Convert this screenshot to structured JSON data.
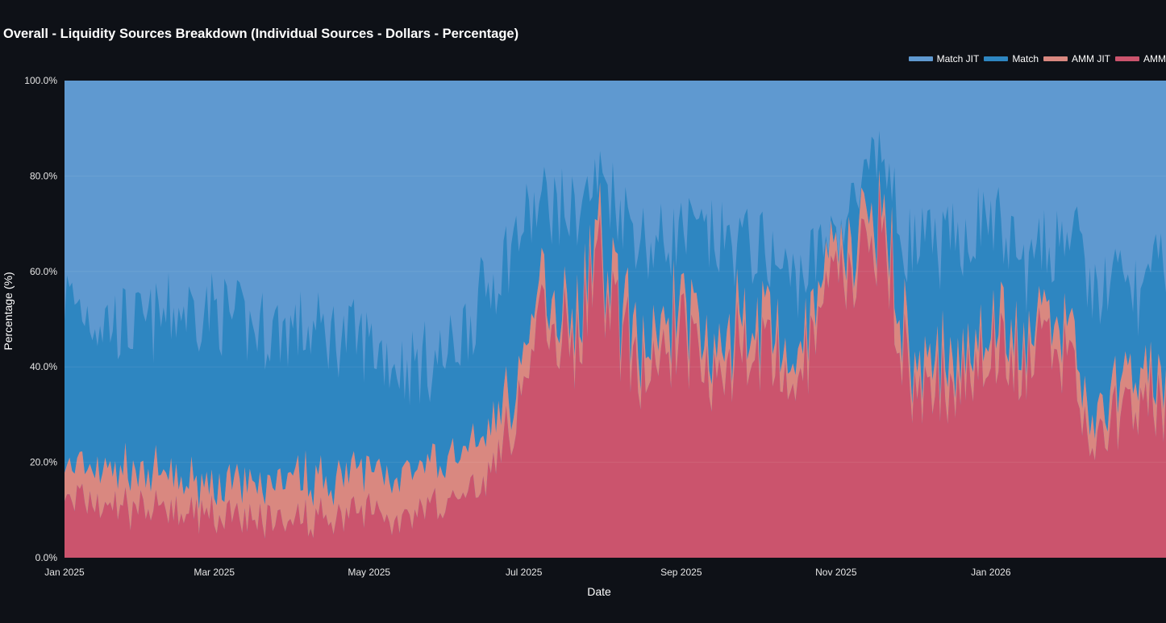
{
  "chart_data": {
    "type": "area",
    "stacking": "percent",
    "title": "Overall - Liquidity Sources Breakdown (Individual Sources - Dollars - Percentage)",
    "xlabel": "Date",
    "ylabel": "Percentage (%)",
    "ylim": [
      0,
      100
    ],
    "yticks": [
      0,
      20,
      40,
      60,
      80,
      100
    ],
    "ytick_labels": [
      "0.0%",
      "20.0%",
      "40.0%",
      "60.0%",
      "80.0%",
      "100.0%"
    ],
    "x_start": "2025-01-01",
    "x_end": "2026-03-11",
    "xticks": [
      "2025-01-01",
      "2025-03-01",
      "2025-05-01",
      "2025-07-01",
      "2025-09-01",
      "2025-11-01",
      "2026-01-01"
    ],
    "xtick_labels": [
      "Jan 2025",
      "Mar 2025",
      "May 2025",
      "Jul 2025",
      "Sep 2025",
      "Nov 2025",
      "Jan 2026"
    ],
    "legend_position": "top-right",
    "legend": [
      "Match JIT",
      "Match",
      "AMM JIT",
      "AMM"
    ],
    "series_colors": {
      "Match JIT": "#5f99d0",
      "Match": "#2e86c1",
      "AMM JIT": "#d98880",
      "AMM": "#cb546d"
    },
    "cumulative_keypoints": {
      "note": "Cumulative stacked boundaries (%) at sampled dates; Match JIT fills remainder to 100%",
      "dates": [
        "2025-01-01",
        "2025-01-15",
        "2025-02-01",
        "2025-02-15",
        "2025-03-01",
        "2025-03-15",
        "2025-04-01",
        "2025-04-15",
        "2025-05-01",
        "2025-05-15",
        "2025-06-01",
        "2025-06-15",
        "2025-07-01",
        "2025-07-10",
        "2025-07-20",
        "2025-08-01",
        "2025-08-10",
        "2025-08-20",
        "2025-09-01",
        "2025-09-15",
        "2025-10-01",
        "2025-10-15",
        "2025-11-01",
        "2025-11-10",
        "2025-11-20",
        "2025-11-25",
        "2025-12-01",
        "2025-12-15",
        "2026-01-01",
        "2026-01-15",
        "2026-02-01",
        "2026-02-10",
        "2026-02-20",
        "2026-03-01",
        "2026-03-11"
      ],
      "amm": [
        12,
        10,
        11,
        9,
        9,
        8,
        8,
        9,
        10,
        8,
        12,
        15,
        35,
        55,
        45,
        60,
        45,
        40,
        48,
        40,
        45,
        35,
        55,
        60,
        72,
        50,
        35,
        35,
        45,
        40,
        45,
        20,
        30,
        35,
        28
      ],
      "amm_plus_amm_jit": [
        18,
        17,
        18,
        15,
        15,
        14,
        16,
        16,
        18,
        16,
        20,
        24,
        40,
        60,
        50,
        65,
        50,
        45,
        53,
        45,
        50,
        40,
        60,
        65,
        76,
        55,
        40,
        40,
        50,
        45,
        50,
        25,
        35,
        40,
        33
      ],
      "amm_plus_amm_jit_plus_match": [
        55,
        50,
        48,
        52,
        52,
        48,
        48,
        47,
        45,
        40,
        42,
        55,
        70,
        75,
        72,
        80,
        72,
        65,
        68,
        66,
        65,
        58,
        67,
        75,
        85,
        70,
        65,
        65,
        72,
        60,
        70,
        55,
        58,
        55,
        62
      ]
    }
  }
}
